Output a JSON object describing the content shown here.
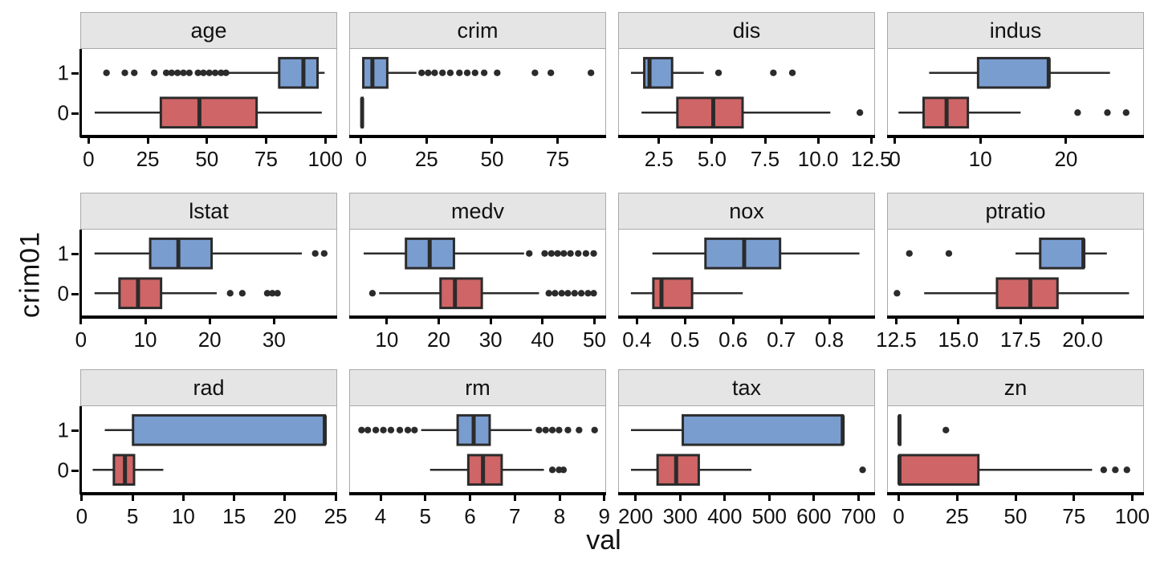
{
  "chart_data": {
    "type": "boxplot",
    "title": "",
    "xlabel": "val",
    "ylabel": "crim01",
    "legend": "none",
    "grid": "off",
    "y_levels": [
      "1",
      "0"
    ],
    "colors": {
      "group1_fill": "#7A9DD0",
      "group0_fill": "#CF6566",
      "stroke": "#2B2B2B",
      "strip_bg": "#E5E5E5",
      "panel_border": "#A9A9A9",
      "axis": "#000000",
      "text": "#111111",
      "background": "#FFFFFF"
    },
    "facets": [
      {
        "label": "age",
        "range": [
          -3.5,
          105
        ],
        "ticks": [
          0,
          25,
          50,
          75,
          100
        ],
        "tick_labels": [
          "0",
          "25",
          "50",
          "75",
          "100"
        ],
        "boxes": {
          "g1": {
            "whisker_lo": 59,
            "q1": 80.7,
            "median": 91,
            "q3": 97,
            "whisker_hi": 100,
            "outliers": [
              7.3,
              15.1,
              19.1,
              27.6,
              32.7,
              35,
              37.5,
              40,
              42.5,
              46.2,
              48.5,
              51,
              53.5,
              56,
              58.1
            ]
          },
          "g0": {
            "whisker_lo": 2.3,
            "q1": 30.4,
            "median": 46.8,
            "q3": 71.1,
            "whisker_hi": 98.8,
            "outliers": []
          }
        }
      },
      {
        "label": "crim",
        "range": [
          -4.5,
          93.5
        ],
        "ticks": [
          0,
          25,
          50,
          75
        ],
        "tick_labels": [
          "0",
          "25",
          "50",
          "75"
        ],
        "boxes": {
          "g1": {
            "whisker_lo": 0.3,
            "q1": 0.6,
            "median": 4.1,
            "q3": 9.8,
            "whisker_hi": 21.0,
            "outliers": [
              23,
              25.5,
              28,
              31,
              34,
              37.5,
              40.5,
              43.5,
              47,
              52,
              66.5,
              72.6,
              88
            ]
          },
          "g0": {
            "whisker_lo": 0.01,
            "q1": 0.05,
            "median": 0.15,
            "q3": 0.3,
            "whisker_hi": 0.8,
            "outliers": []
          }
        }
      },
      {
        "label": "dis",
        "range": [
          0.58,
          12.68
        ],
        "ticks": [
          2.5,
          5.0,
          7.5,
          10.0,
          12.5
        ],
        "tick_labels": [
          "2.5",
          "5.0",
          "7.5",
          "10.0",
          "12.5"
        ],
        "boxes": {
          "g1": {
            "whisker_lo": 1.15,
            "q1": 1.78,
            "median": 2.03,
            "q3": 3.1,
            "whisker_hi": 4.6,
            "outliers": [
              5.3,
              7.9,
              8.8
            ]
          },
          "g0": {
            "whisker_lo": 1.65,
            "q1": 3.35,
            "median": 5.05,
            "q3": 6.44,
            "whisker_hi": 10.6,
            "outliers": [
              12.0
            ]
          }
        }
      },
      {
        "label": "indus",
        "range": [
          -0.9,
          29.1
        ],
        "ticks": [
          0,
          10,
          20
        ],
        "tick_labels": [
          "0",
          "10",
          "20"
        ],
        "boxes": {
          "g1": {
            "whisker_lo": 3.95,
            "q1": 9.7,
            "median": 18.0,
            "q3": 18.0,
            "whisker_hi": 25.2,
            "outliers": []
          },
          "g0": {
            "whisker_lo": 0.35,
            "q1": 3.3,
            "median": 6.0,
            "q3": 8.5,
            "whisker_hi": 14.7,
            "outliers": [
              21.4,
              24.9,
              27.1
            ]
          }
        }
      },
      {
        "label": "lstat",
        "range": [
          -0.1,
          39.8
        ],
        "ticks": [
          0,
          10,
          20,
          30
        ],
        "tick_labels": [
          "0",
          "10",
          "20",
          "30"
        ],
        "boxes": {
          "g1": {
            "whisker_lo": 2.0,
            "q1": 10.7,
            "median": 15.1,
            "q3": 20.3,
            "whisker_hi": 34.4,
            "outliers": [
              36.5,
              37.9
            ]
          },
          "g0": {
            "whisker_lo": 2.0,
            "q1": 5.9,
            "median": 8.8,
            "q3": 12.4,
            "whisker_hi": 21.1,
            "outliers": [
              23.2,
              25.1,
              29.0,
              29.8,
              30.6
            ]
          }
        }
      },
      {
        "label": "medv",
        "range": [
          2.75,
          52.25
        ],
        "ticks": [
          10,
          20,
          30,
          40,
          50
        ],
        "tick_labels": [
          "10",
          "20",
          "30",
          "40",
          "50"
        ],
        "boxes": {
          "g1": {
            "whisker_lo": 5.4,
            "q1": 13.6,
            "median": 18.2,
            "q3": 22.9,
            "whisker_hi": 36.5,
            "outliers": [
              37.5,
              40.5,
              41.8,
              43,
              44.2,
              45.5,
              47,
              48.5,
              50
            ]
          },
          "g0": {
            "whisker_lo": 8.4,
            "q1": 20.3,
            "median": 23.1,
            "q3": 28.3,
            "whisker_hi": 39.4,
            "outliers": [
              7.1,
              41.3,
              42.5,
              43.8,
              45,
              46.3,
              47.6,
              48.9,
              50
            ]
          }
        }
      },
      {
        "label": "nox",
        "range": [
          0.361,
          0.895
        ],
        "ticks": [
          0.4,
          0.5,
          0.6,
          0.7,
          0.8
        ],
        "tick_labels": [
          "0.4",
          "0.5",
          "0.6",
          "0.7",
          "0.8"
        ],
        "boxes": {
          "g1": {
            "whisker_lo": 0.431,
            "q1": 0.542,
            "median": 0.623,
            "q3": 0.698,
            "whisker_hi": 0.864,
            "outliers": []
          },
          "g0": {
            "whisker_lo": 0.386,
            "q1": 0.433,
            "median": 0.45,
            "q3": 0.514,
            "whisker_hi": 0.62,
            "outliers": []
          }
        }
      },
      {
        "label": "ptratio",
        "range": [
          12.13,
          22.47
        ],
        "ticks": [
          12.5,
          15.0,
          17.5,
          20.0
        ],
        "tick_labels": [
          "12.5",
          "15.0",
          "17.5",
          "20.0"
        ],
        "boxes": {
          "g1": {
            "whisker_lo": 17.3,
            "q1": 18.3,
            "median": 20.05,
            "q3": 20.05,
            "whisker_hi": 21.0,
            "outliers": [
              13.0,
              14.6
            ]
          },
          "g0": {
            "whisker_lo": 13.6,
            "q1": 16.55,
            "median": 17.9,
            "q3": 19.0,
            "whisker_hi": 21.9,
            "outliers": [
              12.5
            ]
          }
        }
      },
      {
        "label": "rad",
        "range": [
          -0.15,
          25.15
        ],
        "ticks": [
          0,
          5,
          10,
          15,
          20,
          25
        ],
        "tick_labels": [
          "0",
          "5",
          "10",
          "15",
          "20",
          "25"
        ],
        "boxes": {
          "g1": {
            "whisker_lo": 2.2,
            "q1": 5,
            "median": 24,
            "q3": 24,
            "whisker_hi": 24,
            "outliers": []
          },
          "g0": {
            "whisker_lo": 1,
            "q1": 3.1,
            "median": 4.2,
            "q3": 5.1,
            "whisker_hi": 8,
            "outliers": []
          }
        }
      },
      {
        "label": "rm",
        "range": [
          3.3,
          9.04
        ],
        "ticks": [
          4,
          5,
          6,
          7,
          8,
          9
        ],
        "tick_labels": [
          "4",
          "5",
          "6",
          "7",
          "8",
          "9"
        ],
        "boxes": {
          "g1": {
            "whisker_lo": 4.9,
            "q1": 5.72,
            "median": 6.08,
            "q3": 6.44,
            "whisker_hi": 7.39,
            "outliers": [
              3.56,
              3.7,
              3.88,
              4.05,
              4.22,
              4.42,
              4.6,
              4.75,
              7.55,
              7.7,
              7.85,
              8.0,
              8.2,
              8.45,
              8.8
            ]
          },
          "g0": {
            "whisker_lo": 5.1,
            "q1": 5.96,
            "median": 6.29,
            "q3": 6.71,
            "whisker_hi": 7.66,
            "outliers": [
              7.85,
              8.0,
              8.1
            ]
          }
        }
      },
      {
        "label": "tax",
        "range": [
          160.8,
          737.2
        ],
        "ticks": [
          200,
          300,
          400,
          500,
          600,
          700
        ],
        "tick_labels": [
          "200",
          "300",
          "400",
          "500",
          "600",
          "700"
        ],
        "boxes": {
          "g1": {
            "whisker_lo": 188,
            "q1": 305,
            "median": 666,
            "q3": 666,
            "whisker_hi": 666,
            "outliers": []
          },
          "g0": {
            "whisker_lo": 188,
            "q1": 248,
            "median": 290,
            "q3": 341,
            "whisker_hi": 460,
            "outliers": [
              711
            ]
          }
        }
      },
      {
        "label": "zn",
        "range": [
          -5,
          105
        ],
        "ticks": [
          0,
          25,
          50,
          75,
          100
        ],
        "tick_labels": [
          "0",
          "25",
          "50",
          "75",
          "100"
        ],
        "boxes": {
          "g1": {
            "whisker_lo": 0,
            "q1": 0,
            "median": 0,
            "q3": 0,
            "whisker_hi": 0,
            "outliers": [
              20
            ]
          },
          "g0": {
            "whisker_lo": 0,
            "q1": 0,
            "median": 0,
            "q3": 34,
            "whisker_hi": 83,
            "outliers": [
              88,
              93,
              98
            ]
          }
        }
      }
    ]
  }
}
